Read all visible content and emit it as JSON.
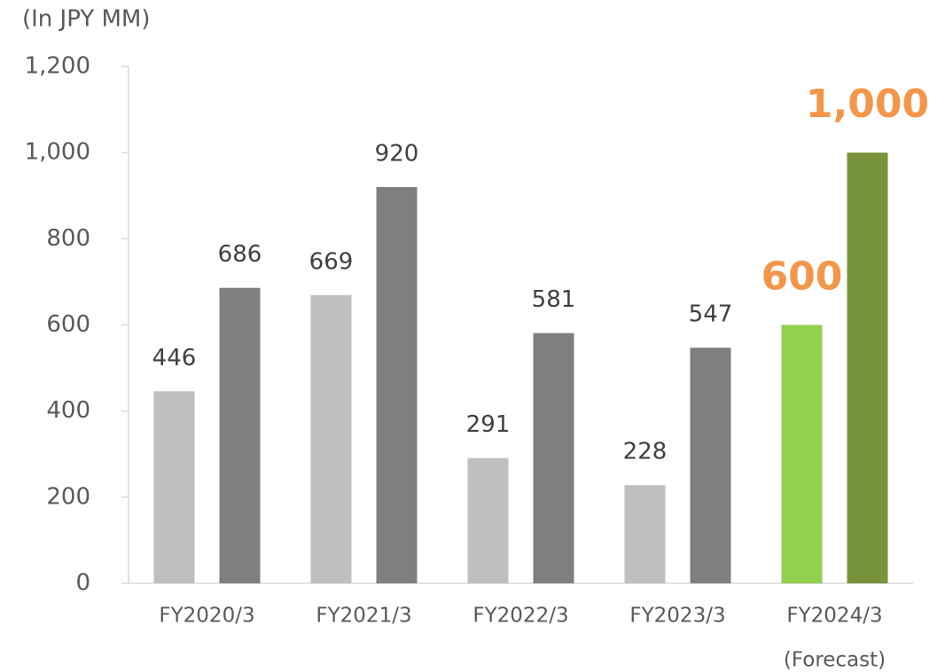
{
  "chart_data": {
    "type": "bar",
    "unit_label": "(In JPY MM)",
    "categories": [
      "FY2020/3",
      "FY2021/3",
      "FY2022/3",
      "FY2023/3",
      "FY2024/3"
    ],
    "category_note": "(Forecast)",
    "series": [
      {
        "colors": [
          "#bfbfbf",
          "#bfbfbf",
          "#bfbfbf",
          "#bfbfbf",
          "#92d050"
        ],
        "label_colors": [
          "#404040",
          "#404040",
          "#404040",
          "#404040",
          "#f4964a"
        ],
        "values": [
          446,
          669,
          291,
          228,
          600
        ]
      },
      {
        "colors": [
          "#7f7f7f",
          "#7f7f7f",
          "#7f7f7f",
          "#7f7f7f",
          "#77933c"
        ],
        "label_colors": [
          "#404040",
          "#404040",
          "#404040",
          "#404040",
          "#f4964a"
        ],
        "values": [
          686,
          920,
          581,
          547,
          1000
        ],
        "value_labels": [
          "686",
          "920",
          "581",
          "547",
          "1,000"
        ]
      }
    ],
    "highlight_labels": [
      false,
      false,
      false,
      false,
      true
    ],
    "ylim": [
      0,
      1200
    ],
    "yticks": [
      0,
      200,
      400,
      600,
      800,
      {
        "value": 1000,
        "label": "1,000"
      },
      {
        "value": 1200,
        "label": "1,200"
      }
    ]
  }
}
